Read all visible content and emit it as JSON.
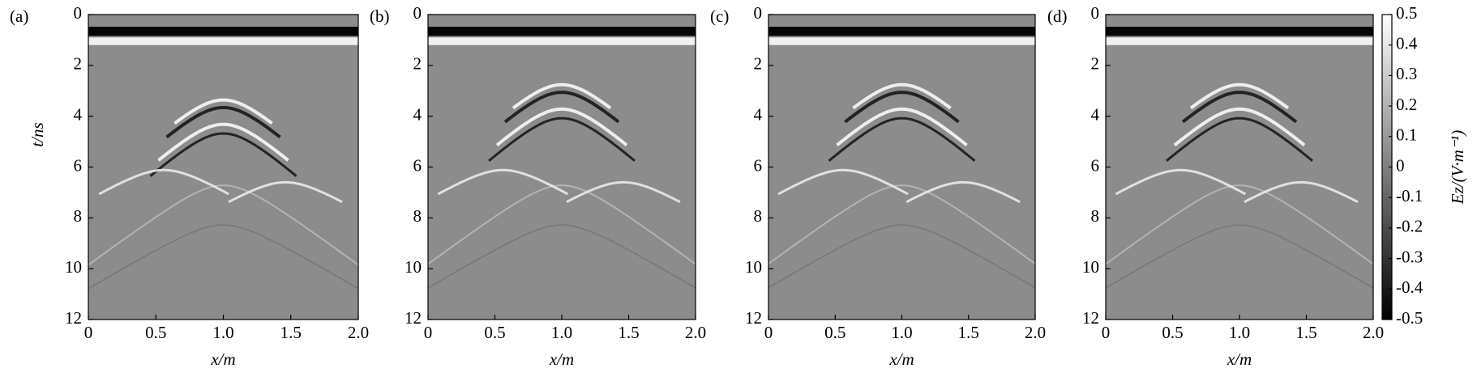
{
  "chart_data": [
    {
      "type": "heatmap",
      "label": "(a)",
      "xlabel": "x/m",
      "ylabel": "t/ns",
      "cmap": "gray",
      "xlim": [
        0,
        2
      ],
      "xticks": [
        0,
        0.5,
        {
          "value": 1,
          "label": "1.0"
        },
        1.5,
        {
          "value": 2,
          "label": "2.0"
        }
      ],
      "ylim": [
        12,
        0
      ],
      "yticks": [
        0,
        2,
        4,
        6,
        8,
        10,
        12
      ]
    },
    {
      "type": "heatmap",
      "label": "(b)",
      "xlabel": "x/m",
      "cmap": "gray",
      "xlim": [
        0,
        2
      ],
      "xticks": [
        0,
        0.5,
        {
          "value": 1,
          "label": "1.0"
        },
        1.5,
        {
          "value": 2,
          "label": "2.0"
        }
      ],
      "ylim": [
        12,
        0
      ],
      "yticks": [
        0,
        2,
        4,
        6,
        8,
        10,
        12
      ]
    },
    {
      "type": "heatmap",
      "label": "(c)",
      "xlabel": "x/m",
      "cmap": "gray",
      "xlim": [
        0,
        2
      ],
      "xticks": [
        0,
        0.5,
        {
          "value": 1,
          "label": "1.0"
        },
        1.5,
        {
          "value": 2,
          "label": "2.0"
        }
      ],
      "ylim": [
        12,
        0
      ],
      "yticks": [
        0,
        2,
        4,
        6,
        8,
        10,
        12
      ]
    },
    {
      "type": "heatmap",
      "label": "(d)",
      "xlabel": "x/m",
      "cmap": "gray",
      "xlim": [
        0,
        2
      ],
      "xticks": [
        0,
        0.5,
        {
          "value": 1,
          "label": "1.0"
        },
        1.5,
        {
          "value": 2,
          "label": "2.0"
        }
      ],
      "ylim": [
        12,
        0
      ],
      "yticks": [
        0,
        2,
        4,
        6,
        8,
        10,
        12
      ],
      "colorbar": {
        "label": "Ez/(V·m⁻¹)",
        "lim": [
          -0.5,
          0.5
        ],
        "ticks": [
          0.5,
          0.4,
          0.3,
          0.2,
          0.1,
          0,
          -0.1,
          -0.2,
          -0.3,
          -0.4,
          -0.5
        ]
      }
    }
  ]
}
